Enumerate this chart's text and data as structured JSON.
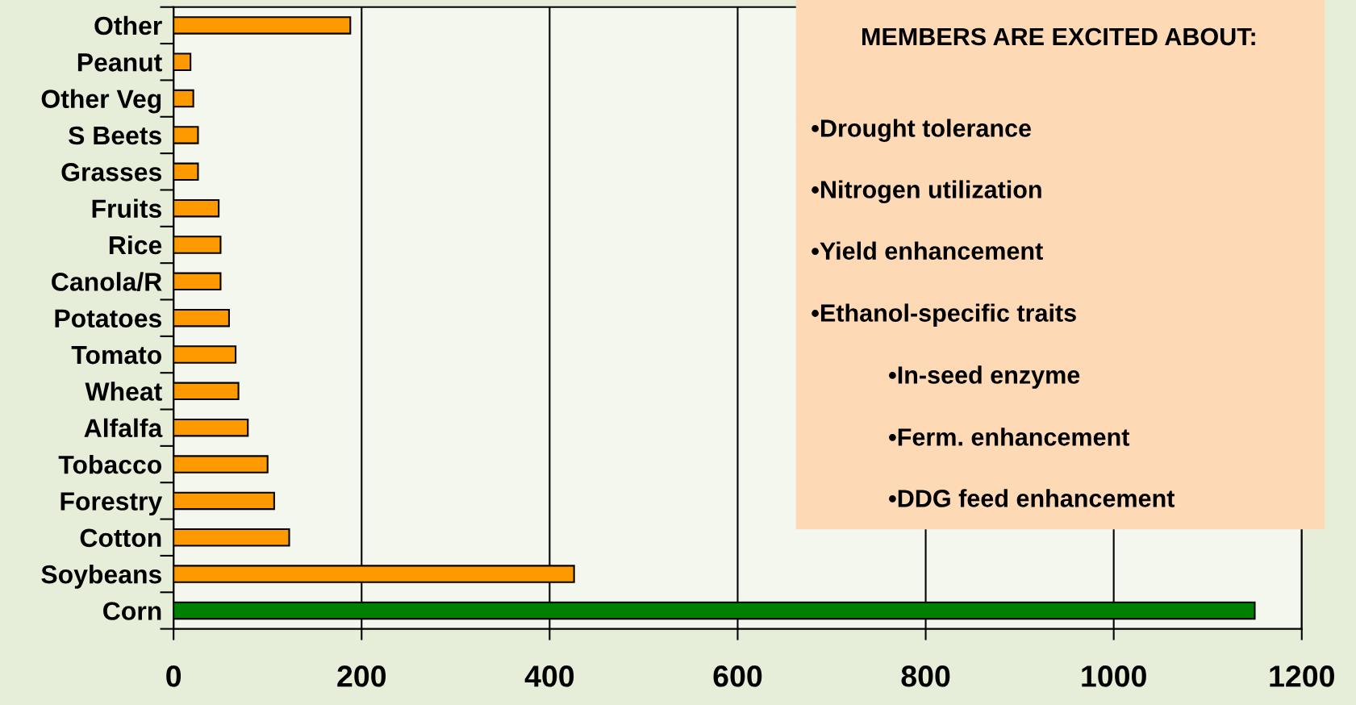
{
  "chart_data": {
    "type": "bar",
    "orientation": "horizontal",
    "categories": [
      "Other",
      "Peanut",
      "Other Veg",
      "S Beets",
      "Grasses",
      "Fruits",
      "Rice",
      "Canola/R",
      "Potatoes",
      "Tomato",
      "Wheat",
      "Alfalfa",
      "Tobacco",
      "Forestry",
      "Cotton",
      "Soybeans",
      "Corn"
    ],
    "values": [
      188,
      18,
      21,
      26,
      26,
      48,
      50,
      50,
      59,
      66,
      69,
      79,
      100,
      107,
      123,
      426,
      1150
    ],
    "colors": [
      "#ff9900",
      "#ff9900",
      "#ff9900",
      "#ff9900",
      "#ff9900",
      "#ff9900",
      "#ff9900",
      "#ff9900",
      "#ff9900",
      "#ff9900",
      "#ff9900",
      "#ff9900",
      "#ff9900",
      "#ff9900",
      "#ff9900",
      "#ff9900",
      "#008000"
    ],
    "xlim": [
      0,
      1200
    ],
    "xticks": [
      0,
      200,
      400,
      600,
      800,
      1000,
      1200
    ],
    "grid": "x",
    "annotations": [
      "MEMBERS ARE EXCITED ABOUT:",
      "•Drought tolerance",
      "•Nitrogen utilization",
      "•Yield enhancement",
      "•Ethanol-specific traits",
      "•In-seed enzyme",
      "•Ferm. enhancement",
      "•DDG feed enhancement"
    ]
  }
}
